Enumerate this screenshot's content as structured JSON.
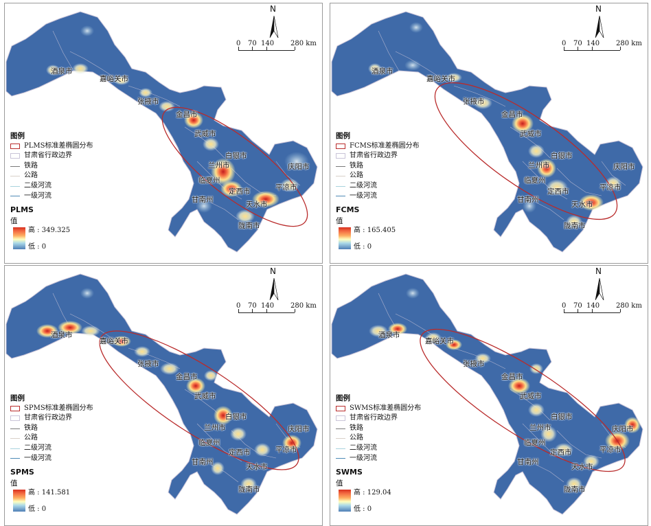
{
  "panels": [
    {
      "index_name": "PLMS",
      "legend": {
        "title": "图例",
        "ellipse_label": "PLMS标准差椭圆分布",
        "boundary": "甘肃省行政边界",
        "railway": "铁路",
        "road": "公路",
        "river2": "二级河流",
        "river1": "一级河流",
        "value_title": "值",
        "high": "高 : 349.325",
        "low": "低 : 0"
      },
      "scale": {
        "t0": "0",
        "t1": "70",
        "t2": "140",
        "t3": "280 km"
      },
      "north": "N"
    },
    {
      "index_name": "FCMS",
      "legend": {
        "title": "图例",
        "ellipse_label": "FCMS标准差椭圆分布",
        "boundary": "甘肃省行政边界",
        "railway": "铁路",
        "road": "公路",
        "river2": "二级河流",
        "river1": "一级河流",
        "value_title": "值",
        "high": "高 : 165.405",
        "low": "低 : 0"
      },
      "scale": {
        "t0": "0",
        "t1": "70",
        "t2": "140",
        "t3": "280 km"
      },
      "north": "N"
    },
    {
      "index_name": "SPMS",
      "legend": {
        "title": "图例",
        "ellipse_label": "SPMS标准差椭圆分布",
        "boundary": "甘肃省行政边界",
        "railway": "铁路",
        "road": "公路",
        "river2": "二级河流",
        "river1": "一级河流",
        "value_title": "值",
        "high": "高 : 141.581",
        "low": "低 : 0"
      },
      "scale": {
        "t0": "0",
        "t1": "70",
        "t2": "140",
        "t3": "280 km"
      },
      "north": "N"
    },
    {
      "index_name": "SWMS",
      "legend": {
        "title": "图例",
        "ellipse_label": "SWMS标准差椭圆分布",
        "boundary": "甘肃省行政边界",
        "railway": "铁路",
        "road": "公路",
        "river2": "二级河流",
        "river1": "一级河流",
        "value_title": "值",
        "high": "高 : 129.04",
        "low": "低 : 0"
      },
      "scale": {
        "t0": "0",
        "t1": "70",
        "t2": "140",
        "t3": "280 km"
      },
      "north": "N"
    }
  ],
  "cities": {
    "jiuquan": "酒泉市",
    "jiayuguan": "嘉峪关市",
    "zhangye": "张掖市",
    "jinchang": "金昌市",
    "wuwei": "武威市",
    "baiyin": "白银市",
    "lanzhou": "兰州市",
    "linxia": "临夏州",
    "dingxi": "定西市",
    "qingyang": "庆阳市",
    "pingliang": "平凉市",
    "gannan": "甘南州",
    "tianshui": "天水市",
    "longnan": "陇南市"
  },
  "colors": {
    "base": "#3f6aa8",
    "low": "#4f7fb6",
    "mid": "#ffffbf",
    "high": "#d7301f",
    "ellipse": "#b92b2b",
    "boundary": "#c9c4d8"
  }
}
